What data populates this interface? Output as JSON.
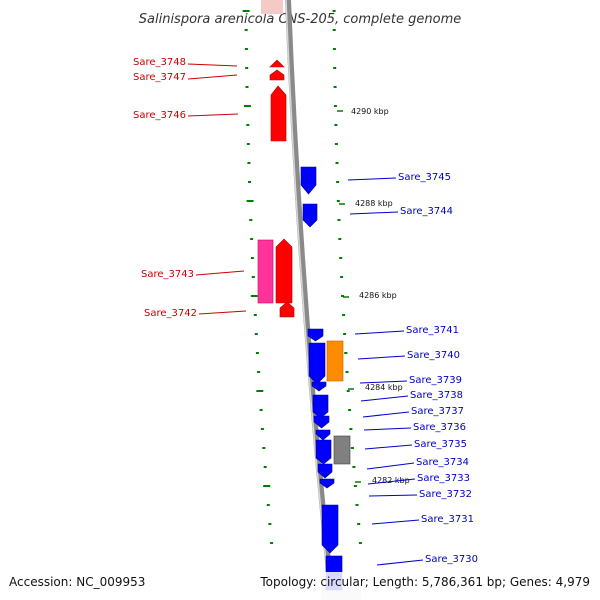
{
  "title": "Salinispora arenicola CNS-205, complete genome",
  "accession": "Accession: NC_009953",
  "topology": "Topology: circular; Length: 5,786,361 bp; Genes: 4,979",
  "colors": {
    "backbone": "#808080",
    "forward_cds": "#ff0000",
    "reverse_cds": "#0000ff",
    "tick": "#008000",
    "label_forward": "#cc0000",
    "label_reverse": "#0000cc"
  },
  "scale_labels": [
    "4290 kbp",
    "4288 kbp",
    "4286 kbp",
    "4284 kbp",
    "4282 kbp"
  ],
  "genes_left": [
    "Sare_3748",
    "Sare_3747",
    "Sare_3746",
    "Sare_3743",
    "Sare_3742"
  ],
  "genes_right": [
    "Sare_3745",
    "Sare_3744",
    "Sare_3741",
    "Sare_3740",
    "Sare_3739",
    "Sare_3738",
    "Sare_3737",
    "Sare_3736",
    "Sare_3735",
    "Sare_3734",
    "Sare_3733",
    "Sare_3732",
    "Sare_3731",
    "Sare_3730"
  ]
}
